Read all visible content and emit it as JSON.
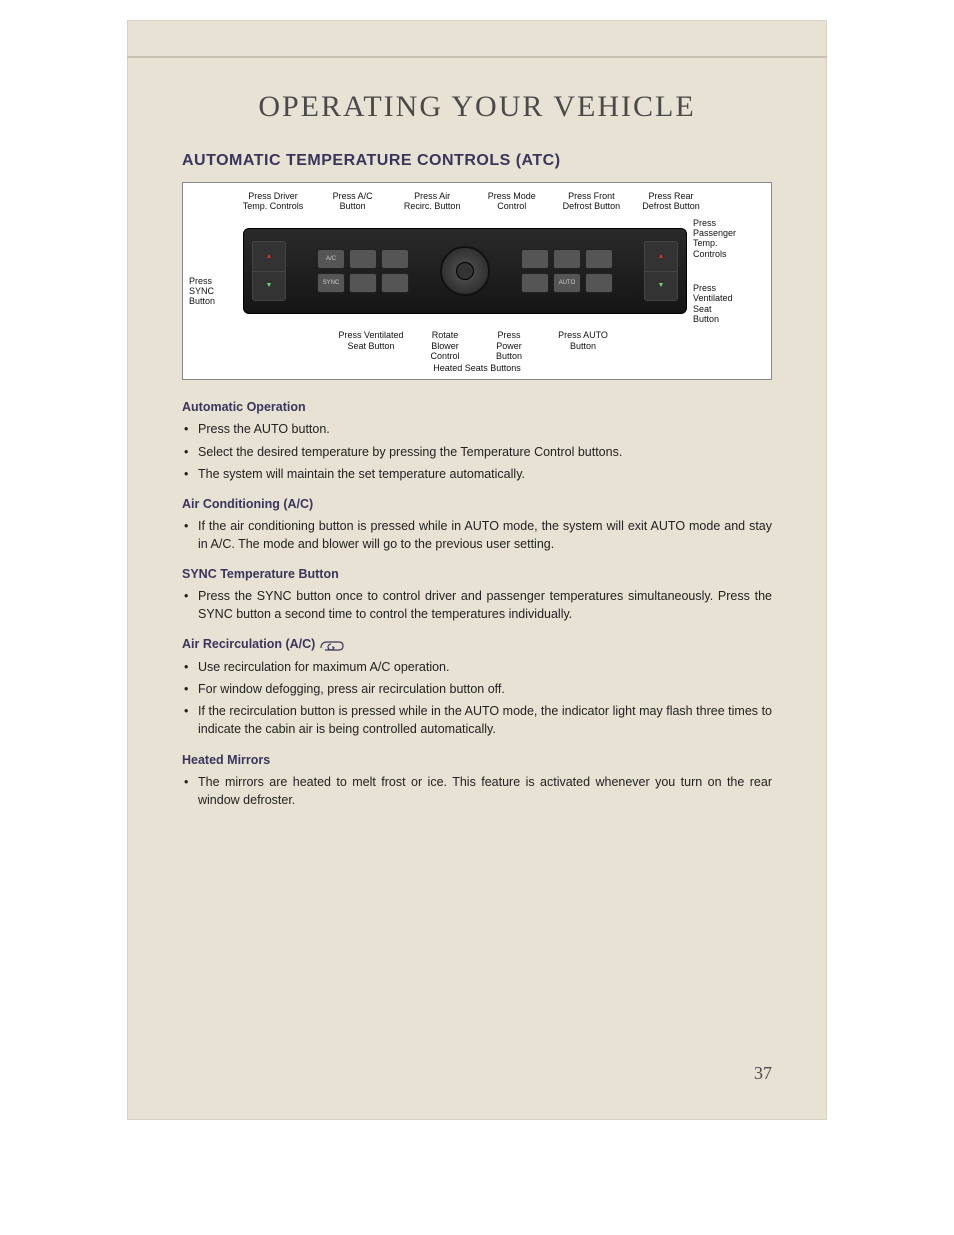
{
  "page": {
    "title": "OPERATING YOUR VEHICLE",
    "section": "AUTOMATIC TEMPERATURE CONTROLS (ATC)",
    "number": "37",
    "bg_color": "#e8e2d5",
    "accent_color": "#3a355a"
  },
  "diagram": {
    "top_labels": [
      "Press Driver\nTemp. Controls",
      "Press A/C\nButton",
      "Press Air\nRecirc. Button",
      "Press Mode\nControl",
      "Press Front\nDefrost Button",
      "Press Rear\nDefrost Button"
    ],
    "left_labels": [
      "",
      "Press\nSYNC\nButton"
    ],
    "right_labels": [
      "Press\nPassenger\nTemp.\nControls",
      "Press\nVentilated\nSeat\nButton"
    ],
    "bottom_labels": [
      "Press Ventilated\nSeat Button",
      "Rotate\nBlower\nControl",
      "Press\nPower\nButton",
      "Press AUTO\nButton"
    ],
    "heated_caption": "Heated Seats Buttons",
    "panel_btn_labels": [
      "A/C",
      "",
      "",
      "SYNC",
      "",
      "",
      "",
      "",
      "",
      "",
      "AUTO",
      ""
    ]
  },
  "sections": [
    {
      "heading": "Automatic Operation",
      "icon": null,
      "bullets": [
        "Press the AUTO button.",
        "Select the desired temperature by pressing the Temperature Control buttons.",
        "The system will maintain the set temperature automatically."
      ]
    },
    {
      "heading": "Air Conditioning (A/C)",
      "icon": null,
      "bullets": [
        "If the air conditioning button is pressed while in AUTO mode, the system will exit AUTO mode and stay in A/C. The mode and blower will go to the previous user setting."
      ]
    },
    {
      "heading": "SYNC Temperature Button",
      "icon": null,
      "bullets": [
        "Press the SYNC button once to control driver and passenger temperatures simultaneously. Press the SYNC button a second time to control the temperatures individually."
      ]
    },
    {
      "heading": "Air Recirculation (A/C)",
      "icon": "recirc",
      "bullets": [
        "Use recirculation for maximum A/C operation.",
        "For window defogging, press air recirculation button off.",
        "If the recirculation button is pressed while in the AUTO mode, the indicator light may flash three times to indicate the cabin air is being controlled automatically."
      ]
    },
    {
      "heading": "Heated Mirrors",
      "icon": null,
      "bullets": [
        "The mirrors are heated to melt frost or ice. This feature is activated whenever you turn on the rear window defroster."
      ]
    }
  ]
}
